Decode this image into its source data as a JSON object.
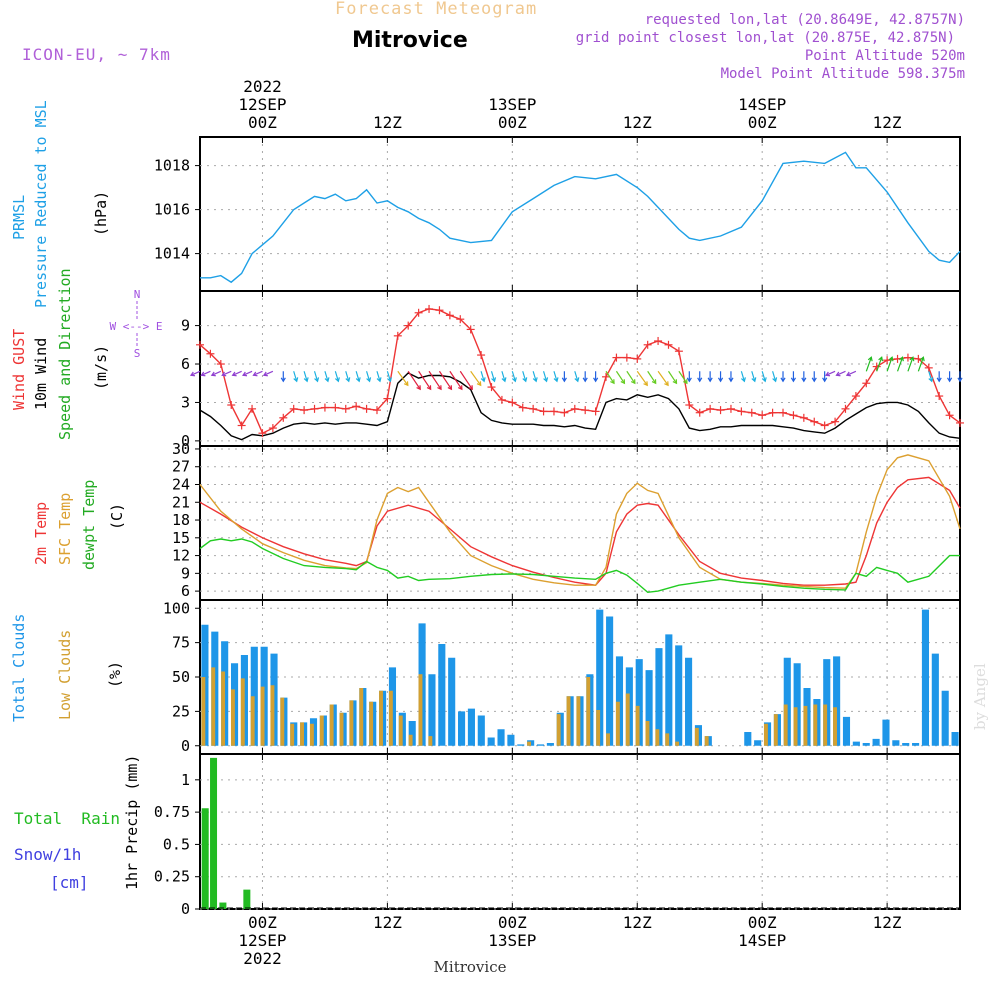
{
  "header": {
    "suptitle": "Forecast Meteogram",
    "location": "Mitrovice",
    "model": "ICON-EU, ~ 7km",
    "requested": "requested lon,lat (20.8649E, 42.8757N)",
    "grid_point": "grid point closest lon,lat (20.875E, 42.875N)",
    "point_altitude": "Point Altitude 520m",
    "model_altitude": "Model Point Altitude 598.375m",
    "bottom_location": "Mitrovice",
    "credit": "by Angel"
  },
  "time_axis": {
    "ticks_top": [
      {
        "hour": 6,
        "lines": [
          "2022",
          "12SEP",
          "00Z"
        ]
      },
      {
        "hour": 18,
        "lines": [
          "12Z"
        ]
      },
      {
        "hour": 30,
        "lines": [
          "13SEP",
          "00Z"
        ]
      },
      {
        "hour": 42,
        "lines": [
          "12Z"
        ]
      },
      {
        "hour": 54,
        "lines": [
          "14SEP",
          "00Z"
        ]
      },
      {
        "hour": 66,
        "lines": [
          "12Z"
        ]
      }
    ],
    "ticks_bottom": [
      {
        "hour": 6,
        "lines": [
          "00Z",
          "12SEP",
          "2022"
        ]
      },
      {
        "hour": 18,
        "lines": [
          "12Z"
        ]
      },
      {
        "hour": 30,
        "lines": [
          "00Z",
          "13SEP"
        ]
      },
      {
        "hour": 42,
        "lines": [
          "12Z"
        ]
      },
      {
        "hour": 54,
        "lines": [
          "00Z",
          "14SEP"
        ]
      },
      {
        "hour": 66,
        "lines": [
          "12Z"
        ]
      }
    ]
  },
  "colors": {
    "pressure": "#1ea0e6",
    "gust": "#ee3535",
    "wind": "#000000",
    "temp2m": "#ee3535",
    "sfc": "#dca030",
    "dewpt": "#22cc22",
    "total_clouds": "#1e96e8",
    "low_clouds": "#d2a032",
    "rain": "#22bb22",
    "snow": "#4040e0",
    "header_purple": "#a050d0",
    "compass": "#a050e0"
  },
  "panels": {
    "pressure": {
      "labels": [
        "PRMSL",
        "Pressure Reduced to MSL"
      ],
      "unit": "(hPa)"
    },
    "wind": {
      "labels": [
        "Wind GUST",
        "10m Wind",
        "Speed and Direction"
      ],
      "unit": "(m/s)",
      "compass": [
        "N",
        "W <--> E",
        "S"
      ]
    },
    "temp": {
      "labels": [
        "2m Temp",
        "SFC Temp",
        "dewpt Temp"
      ],
      "unit": "(C)"
    },
    "clouds": {
      "labels": [
        "Total Clouds",
        "Low Clouds"
      ],
      "unit": "(%)"
    },
    "precip": {
      "labels": [
        "Total  Rain",
        "Snow/1h",
        "[cm]"
      ],
      "unit": "1hr Precip (mm)"
    }
  },
  "chart_data": [
    {
      "type": "line",
      "name": "pressure",
      "title": "PRMSL Pressure Reduced to MSL",
      "ylabel": "(hPa)",
      "x_hours_range": [
        0,
        73
      ],
      "ylim": [
        1012.3,
        1019.3
      ],
      "yticks": [
        1014,
        1016,
        1018
      ],
      "series": [
        {
          "name": "PRMSL",
          "color": "#1ea0e6",
          "x": [
            0,
            1,
            2,
            3,
            4,
            5,
            6,
            7,
            8,
            9,
            10,
            11,
            12,
            13,
            14,
            15,
            16,
            17,
            18,
            19,
            20,
            21,
            22,
            23,
            24,
            26,
            28,
            30,
            32,
            34,
            36,
            38,
            40,
            42,
            43,
            44,
            45,
            46,
            47,
            48,
            50,
            52,
            54,
            56,
            58,
            60,
            62,
            63,
            64,
            66,
            68,
            70,
            71,
            72,
            73
          ],
          "y": [
            1012.9,
            1012.9,
            1013.0,
            1012.7,
            1013.1,
            1014.0,
            1014.4,
            1014.8,
            1015.4,
            1016.0,
            1016.3,
            1016.6,
            1016.5,
            1016.7,
            1016.4,
            1016.5,
            1016.9,
            1016.3,
            1016.4,
            1016.1,
            1015.9,
            1015.6,
            1015.4,
            1015.1,
            1014.7,
            1014.5,
            1014.6,
            1015.9,
            1016.5,
            1017.1,
            1017.5,
            1017.4,
            1017.6,
            1017.0,
            1016.6,
            1016.1,
            1015.6,
            1015.1,
            1014.7,
            1014.6,
            1014.8,
            1015.2,
            1016.4,
            1018.1,
            1018.2,
            1018.1,
            1018.6,
            1017.9,
            1017.9,
            1016.8,
            1015.4,
            1014.1,
            1013.7,
            1013.6,
            1014.1
          ]
        }
      ]
    },
    {
      "type": "line",
      "name": "wind",
      "title": "Wind GUST / 10m Wind Speed and Direction",
      "ylabel": "(m/s)",
      "x_hours_range": [
        0,
        73
      ],
      "ylim": [
        -0.4,
        11.7
      ],
      "yticks": [
        0,
        3,
        6,
        9
      ],
      "series": [
        {
          "name": "Wind GUST",
          "color": "#ee3535",
          "x": [
            0,
            1,
            2,
            3,
            4,
            5,
            6,
            7,
            8,
            9,
            10,
            11,
            12,
            13,
            14,
            15,
            16,
            17,
            18,
            19,
            20,
            21,
            22,
            23,
            24,
            25,
            26,
            27,
            28,
            29,
            30,
            31,
            32,
            33,
            34,
            35,
            36,
            37,
            38,
            39,
            40,
            41,
            42,
            43,
            44,
            45,
            46,
            47,
            48,
            49,
            50,
            51,
            52,
            53,
            54,
            55,
            56,
            57,
            58,
            59,
            60,
            61,
            62,
            63,
            64,
            65,
            66,
            67,
            68,
            69,
            70,
            71,
            72,
            73
          ],
          "y": [
            7.5,
            6.8,
            6.0,
            2.8,
            1.2,
            2.5,
            0.6,
            1.0,
            1.8,
            2.5,
            2.4,
            2.5,
            2.6,
            2.6,
            2.5,
            2.7,
            2.5,
            2.4,
            3.3,
            8.2,
            9.0,
            10.0,
            10.3,
            10.2,
            9.8,
            9.5,
            8.7,
            6.7,
            4.2,
            3.2,
            3.0,
            2.6,
            2.5,
            2.3,
            2.3,
            2.2,
            2.5,
            2.4,
            2.3,
            5.0,
            6.5,
            6.5,
            6.4,
            7.5,
            7.8,
            7.5,
            7.0,
            2.8,
            2.2,
            2.5,
            2.4,
            2.5,
            2.3,
            2.2,
            2.0,
            2.2,
            2.2,
            2.0,
            1.8,
            1.5,
            1.2,
            1.5,
            2.5,
            3.5,
            4.5,
            5.8,
            6.3,
            6.4,
            6.5,
            6.4,
            5.7,
            3.5,
            2.0,
            1.4
          ]
        },
        {
          "name": "10m Wind",
          "color": "#000000",
          "x": [
            0,
            1,
            2,
            3,
            4,
            5,
            6,
            7,
            8,
            9,
            10,
            11,
            12,
            13,
            14,
            15,
            16,
            17,
            18,
            19,
            20,
            21,
            22,
            23,
            24,
            25,
            26,
            27,
            28,
            29,
            30,
            31,
            32,
            33,
            34,
            35,
            36,
            37,
            38,
            39,
            40,
            41,
            42,
            43,
            44,
            45,
            46,
            47,
            48,
            49,
            50,
            51,
            52,
            53,
            54,
            55,
            56,
            57,
            58,
            59,
            60,
            61,
            62,
            63,
            64,
            65,
            66,
            67,
            68,
            69,
            70,
            71,
            72,
            73
          ],
          "y": [
            2.4,
            1.9,
            1.2,
            0.4,
            0.1,
            0.5,
            0.4,
            0.6,
            1.0,
            1.3,
            1.4,
            1.3,
            1.4,
            1.3,
            1.4,
            1.4,
            1.3,
            1.2,
            1.5,
            4.5,
            5.3,
            4.9,
            5.1,
            5.1,
            5.0,
            4.6,
            4.0,
            2.2,
            1.6,
            1.4,
            1.3,
            1.3,
            1.3,
            1.2,
            1.2,
            1.1,
            1.2,
            1.0,
            0.9,
            3.0,
            3.3,
            3.2,
            3.6,
            3.4,
            3.6,
            3.3,
            2.5,
            1.0,
            0.8,
            0.9,
            1.1,
            1.1,
            1.2,
            1.2,
            1.2,
            1.2,
            1.1,
            1.0,
            0.8,
            0.7,
            0.6,
            1.0,
            1.6,
            2.1,
            2.6,
            2.9,
            3.0,
            3.0,
            2.8,
            2.3,
            1.4,
            0.6,
            0.3,
            0.2
          ]
        }
      ]
    },
    {
      "type": "line",
      "name": "temperature",
      "title": "2m Temp / SFC Temp / dewpt Temp",
      "ylabel": "(C)",
      "x_hours_range": [
        0,
        73
      ],
      "ylim": [
        4.5,
        30.5
      ],
      "yticks": [
        6,
        9,
        12,
        15,
        18,
        21,
        24,
        27,
        30
      ],
      "series": [
        {
          "name": "2m Temp",
          "color": "#ee3535",
          "x": [
            0,
            2,
            4,
            6,
            8,
            10,
            12,
            14,
            15,
            16,
            17,
            18,
            20,
            22,
            24,
            26,
            28,
            30,
            32,
            34,
            36,
            38,
            39,
            40,
            41,
            42,
            43,
            44,
            46,
            48,
            50,
            52,
            54,
            56,
            58,
            60,
            62,
            63,
            64,
            65,
            66,
            67,
            68,
            70,
            72,
            73
          ],
          "y": [
            21.0,
            19.0,
            16.8,
            15.0,
            13.5,
            12.3,
            11.3,
            10.7,
            10.3,
            11.0,
            17.0,
            19.5,
            20.5,
            19.5,
            16.5,
            13.5,
            11.8,
            10.3,
            9.2,
            8.3,
            7.5,
            7.0,
            9.0,
            16.0,
            19.0,
            20.5,
            20.8,
            20.5,
            15.5,
            11.0,
            9.0,
            8.2,
            7.8,
            7.3,
            7.0,
            7.0,
            7.2,
            7.5,
            12.0,
            17.5,
            21.0,
            23.5,
            24.8,
            25.2,
            23.0,
            20.0
          ]
        },
        {
          "name": "SFC Temp",
          "color": "#dca030",
          "x": [
            0,
            2,
            4,
            6,
            8,
            10,
            12,
            14,
            15,
            16,
            17,
            18,
            19,
            20,
            21,
            22,
            24,
            26,
            28,
            30,
            32,
            34,
            36,
            38,
            39,
            40,
            41,
            42,
            43,
            44,
            46,
            48,
            50,
            52,
            54,
            56,
            58,
            60,
            62,
            63,
            64,
            65,
            66,
            67,
            68,
            70,
            72,
            73
          ],
          "y": [
            24.0,
            19.5,
            16.5,
            14.0,
            12.5,
            11.2,
            10.3,
            9.9,
            9.8,
            10.8,
            18.0,
            22.5,
            23.5,
            22.8,
            23.5,
            21.0,
            16.0,
            12.0,
            10.3,
            9.0,
            8.0,
            7.4,
            7.0,
            7.0,
            10.0,
            19.0,
            22.5,
            24.2,
            23.0,
            22.5,
            15.0,
            10.0,
            8.0,
            7.5,
            7.3,
            7.0,
            6.8,
            6.6,
            6.5,
            9.0,
            16.0,
            22.0,
            26.5,
            28.5,
            29.0,
            28.0,
            22.0,
            16.5
          ]
        },
        {
          "name": "dewpt Temp",
          "color": "#22cc22",
          "x": [
            0,
            1,
            2,
            3,
            4,
            5,
            6,
            8,
            10,
            12,
            14,
            15,
            16,
            17,
            18,
            19,
            20,
            21,
            22,
            24,
            26,
            28,
            30,
            32,
            34,
            36,
            38,
            39,
            40,
            41,
            42,
            43,
            44,
            46,
            48,
            50,
            52,
            54,
            56,
            58,
            60,
            62,
            63,
            64,
            65,
            66,
            67,
            68,
            70,
            72,
            73
          ],
          "y": [
            13.2,
            14.5,
            14.8,
            14.5,
            14.8,
            14.3,
            13.2,
            11.5,
            10.3,
            10.0,
            9.8,
            9.6,
            11.0,
            10.0,
            9.5,
            8.2,
            8.5,
            7.8,
            8.0,
            8.1,
            8.5,
            8.8,
            8.9,
            8.8,
            8.5,
            8.2,
            8.0,
            9.0,
            9.5,
            8.7,
            7.3,
            5.8,
            6.0,
            7.0,
            7.5,
            8.0,
            7.5,
            7.2,
            6.8,
            6.5,
            6.3,
            6.2,
            9.0,
            8.5,
            10.0,
            9.5,
            9.0,
            7.5,
            8.5,
            12.0,
            12.0
          ]
        }
      ]
    },
    {
      "type": "bar",
      "name": "clouds",
      "title": "Total Clouds / Low Clouds",
      "ylabel": "(%)",
      "x_hours_range": [
        0,
        73
      ],
      "ylim": [
        -6,
        106
      ],
      "yticks": [
        0,
        25,
        50,
        75,
        100
      ],
      "series": [
        {
          "name": "Total Clouds",
          "color": "#1e96e8",
          "values": [
            88,
            83,
            76,
            60,
            66,
            72,
            72,
            67,
            35,
            17,
            17,
            20,
            22,
            30,
            24,
            33,
            42,
            32,
            40,
            57,
            24,
            18,
            89,
            52,
            74,
            64,
            25,
            27,
            22,
            6,
            12,
            8,
            1,
            4,
            1,
            2,
            24,
            36,
            36,
            52,
            99,
            94,
            65,
            57,
            63,
            55,
            71,
            81,
            73,
            64,
            15,
            7,
            0,
            0,
            0,
            10,
            4,
            17,
            23,
            64,
            60,
            42,
            34,
            63,
            65,
            21,
            3,
            2,
            5,
            19,
            4,
            2,
            2,
            99,
            67,
            40,
            10
          ]
        },
        {
          "name": "Low Clouds",
          "color": "#d2a032",
          "values": [
            50,
            57,
            54,
            41,
            49,
            36,
            43,
            44,
            35,
            16,
            17,
            16,
            22,
            30,
            24,
            33,
            42,
            32,
            40,
            40,
            22,
            8,
            52,
            7,
            0,
            0,
            0,
            0,
            0,
            0,
            0,
            0,
            0,
            3,
            0,
            0,
            23,
            36,
            36,
            50,
            26,
            9,
            32,
            38,
            29,
            18,
            12,
            9,
            3,
            0,
            13,
            7,
            0,
            0,
            0,
            0,
            0,
            16,
            23,
            30,
            28,
            29,
            30,
            30,
            28,
            0,
            0,
            0,
            0,
            0,
            0,
            0,
            0,
            0,
            0,
            0,
            0
          ]
        }
      ]
    },
    {
      "type": "bar",
      "name": "precipitation",
      "title": "1hr Precip (mm)",
      "ylabel": "1hr Precip (mm)",
      "x_hours_range": [
        0,
        73
      ],
      "ylim": [
        0,
        1.2
      ],
      "yticks": [
        0,
        0.25,
        0.5,
        0.75,
        1
      ],
      "series": [
        {
          "name": "Total Rain",
          "color": "#22bb22",
          "x": [
            0.5,
            1.3,
            2.2,
            4.5
          ],
          "values": [
            0.78,
            1.17,
            0.05,
            0.15
          ]
        }
      ]
    }
  ]
}
